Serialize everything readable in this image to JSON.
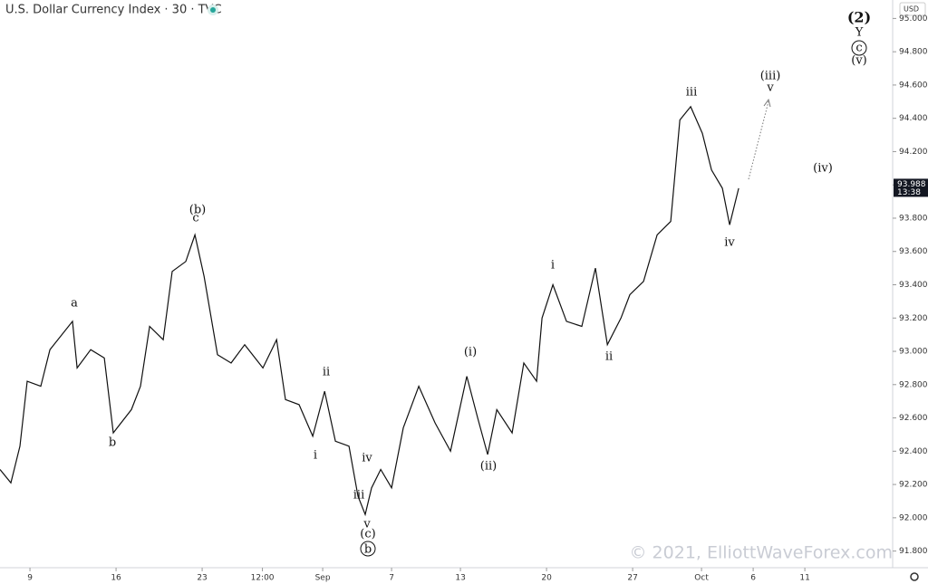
{
  "chart_data": {
    "type": "line",
    "title": "U.S. Dollar Currency Index · 30 · TVC",
    "currency": "USD",
    "color": "#111111",
    "x": [
      -1.74,
      -1.11,
      -0.58,
      -0.16,
      0.63,
      1.16,
      2.47,
      2.74,
      3.53,
      4.32,
      4.84,
      5.89,
      6.42,
      6.95,
      7.74,
      8.26,
      9.05,
      9.58,
      10.11,
      10.89,
      11.68,
      12.47,
      13.53,
      14.32,
      14.84,
      15.63,
      16.42,
      17.11,
      17.74,
      18.53,
      19.05,
      19.47,
      19.84,
      20.37,
      21,
      21.68,
      22.58,
      23.53,
      24.42,
      25.37,
      26,
      26.58,
      27.11,
      28,
      28.68,
      29.42,
      29.74,
      30.37,
      31.16,
      32.05,
      32.84,
      33.53,
      34.32,
      34.84,
      35.63,
      36.42,
      37.21,
      37.74,
      38.37,
      39.05,
      39.58,
      40.21,
      40.63,
      41.16
    ],
    "values": [
      92.29,
      92.21,
      92.43,
      92.82,
      92.79,
      93.01,
      93.18,
      92.9,
      93.01,
      92.96,
      92.51,
      92.65,
      92.79,
      93.15,
      93.07,
      93.48,
      93.54,
      93.7,
      93.45,
      92.98,
      92.93,
      93.04,
      92.9,
      93.07,
      92.71,
      92.68,
      92.49,
      92.76,
      92.46,
      92.43,
      92.13,
      92.02,
      92.18,
      92.29,
      92.18,
      92.54,
      92.79,
      92.57,
      92.4,
      92.85,
      92.6,
      92.38,
      92.65,
      92.51,
      92.93,
      92.82,
      93.2,
      93.4,
      93.18,
      93.15,
      93.5,
      93.04,
      93.2,
      93.34,
      93.42,
      93.7,
      93.78,
      94.39,
      94.47,
      94.31,
      94.09,
      93.98,
      93.76,
      93.98
    ],
    "xlim": [
      -1.74,
      50.1
    ],
    "xticks": [
      {
        "value": 0,
        "label": "9"
      },
      {
        "value": 5,
        "label": "16"
      },
      {
        "value": 10,
        "label": "23"
      },
      {
        "value": 13.5,
        "label": "12:00"
      },
      {
        "value": 17,
        "label": "Sep"
      },
      {
        "value": 21,
        "label": "7"
      },
      {
        "value": 25,
        "label": "13"
      },
      {
        "value": 30,
        "label": "20"
      },
      {
        "value": 35,
        "label": "27"
      },
      {
        "value": 39,
        "label": "Oct"
      },
      {
        "value": 42,
        "label": "6"
      },
      {
        "value": 45,
        "label": "11"
      }
    ],
    "ylim": [
      91.7,
      95.1
    ],
    "yticks": [
      {
        "value": 91.8,
        "label": "91.800"
      },
      {
        "value": 92,
        "label": "92.000"
      },
      {
        "value": 92.2,
        "label": "92.200"
      },
      {
        "value": 92.4,
        "label": "92.400"
      },
      {
        "value": 92.6,
        "label": "92.600"
      },
      {
        "value": 92.8,
        "label": "92.800"
      },
      {
        "value": 93,
        "label": "93.000"
      },
      {
        "value": 93.2,
        "label": "93.200"
      },
      {
        "value": 93.4,
        "label": "93.400"
      },
      {
        "value": 93.6,
        "label": "93.600"
      },
      {
        "value": 93.8,
        "label": "93.800"
      },
      {
        "value": 94,
        "label": "94.000"
      },
      {
        "value": 94.2,
        "label": "94.200"
      },
      {
        "value": 94.4,
        "label": "94.400"
      },
      {
        "value": 94.6,
        "label": "94.600"
      },
      {
        "value": 94.8,
        "label": "94.800"
      },
      {
        "value": 95,
        "label": "95.000"
      }
    ],
    "last_price": {
      "value": 93.988,
      "label": "93.988"
    },
    "countdown": "13:38",
    "annotations": [
      "a",
      "b",
      "(b)",
      "c",
      "i",
      "ii",
      "iii",
      "iv",
      "v",
      "(c)",
      "b",
      "(i)",
      "(ii)",
      "i",
      "ii",
      "iii",
      "iv",
      "(iii)",
      "v",
      "(iv)",
      "(2)",
      "Y",
      "c",
      "(v)"
    ],
    "watermark": "© 2021, ElliottWaveForex.com"
  }
}
